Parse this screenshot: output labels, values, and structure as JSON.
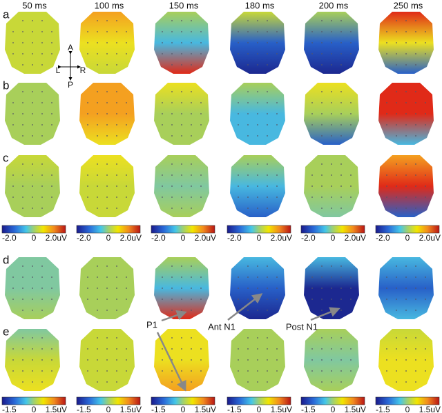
{
  "column_headers": [
    "50 ms",
    "100 ms",
    "150 ms",
    "180 ms",
    "200 ms",
    "250 ms"
  ],
  "row_labels": [
    "a",
    "b",
    "c",
    "d",
    "e"
  ],
  "colorbar_rows": [
    {
      "labels": [
        "-2.0",
        "0",
        "2.0uV"
      ]
    },
    {
      "labels": [
        "-1.5",
        "0",
        "1.5uV"
      ]
    }
  ],
  "orientation": {
    "anterior": "A",
    "left": "L",
    "right": "R",
    "posterior": "P"
  },
  "annotations": [
    "P1",
    "Ant N1",
    "Post N1"
  ]
}
